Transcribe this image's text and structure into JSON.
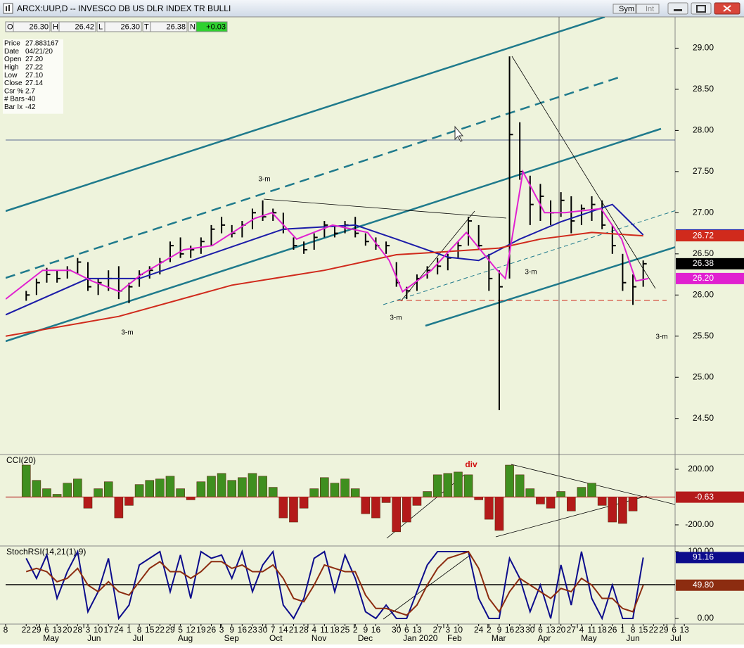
{
  "window": {
    "title": "ARCX:UUP,D -- INVESCO DB US DLR INDEX TR BULLI",
    "buttons": [
      "Sym",
      "Int"
    ]
  },
  "ohlc_strip": [
    [
      "O",
      "26.30"
    ],
    [
      "H",
      "26.42"
    ],
    [
      "L",
      "26.30"
    ],
    [
      "T",
      "26.38"
    ],
    [
      "N",
      "+0.03"
    ]
  ],
  "info_box": [
    [
      "Price",
      "27.883167"
    ],
    [
      "Date",
      "04/21/20"
    ],
    [
      "Open",
      "27.20"
    ],
    [
      "High",
      "27.22"
    ],
    [
      "Low",
      "27.10"
    ],
    [
      "Close",
      "27.14"
    ],
    [
      "Csr %",
      "2.7"
    ],
    [
      "# Bars",
      "-40"
    ],
    [
      "Bar Ix",
      "-42"
    ]
  ],
  "chart_data": [
    {
      "type": "ohlc",
      "xlim": [
        -2,
        63.1
      ],
      "ylim": [
        24.07,
        29.38
      ],
      "yticks": [
        {
          "value": 24.5,
          "label": "24.50"
        },
        {
          "value": 25,
          "label": "25.00"
        },
        {
          "value": 25.5,
          "label": "25.50"
        },
        {
          "value": 26,
          "label": "26.00"
        },
        {
          "value": 26.5,
          "label": "26.50"
        },
        {
          "value": 27,
          "label": "27.00"
        },
        {
          "value": 27.5,
          "label": "27.50"
        },
        {
          "value": 28,
          "label": "28.00"
        },
        {
          "value": 28.5,
          "label": "28.50"
        },
        {
          "value": 29,
          "label": "29.00"
        }
      ],
      "color": "#000000",
      "x": [
        0,
        1,
        2,
        3,
        4,
        5,
        6,
        7,
        8,
        9,
        10,
        11,
        12,
        13,
        14,
        15,
        16,
        17,
        18,
        19,
        20,
        21,
        22,
        23,
        24,
        25,
        26,
        27,
        28,
        29,
        30,
        31,
        32,
        33,
        34,
        35,
        36,
        37,
        38,
        39,
        40,
        41,
        42,
        43,
        44,
        45,
        46,
        47,
        48,
        49,
        50,
        51,
        52,
        53,
        54,
        55,
        56,
        57,
        58,
        59,
        60
      ],
      "high": [
        26.05,
        26.2,
        26.33,
        26.3,
        26.35,
        26.45,
        26.4,
        26.2,
        26.3,
        26.35,
        26.15,
        26.3,
        26.35,
        26.45,
        26.65,
        26.7,
        26.6,
        26.7,
        26.85,
        26.95,
        26.85,
        26.9,
        27.05,
        27.15,
        27.05,
        27.0,
        26.7,
        26.65,
        26.75,
        26.9,
        26.85,
        26.9,
        26.95,
        26.75,
        26.7,
        26.65,
        26.4,
        26.1,
        26.25,
        26.35,
        26.45,
        26.5,
        26.65,
        26.95,
        26.85,
        26.5,
        26.3,
        28.9,
        28.1,
        27.45,
        27.35,
        27.15,
        27.25,
        27.2,
        27.1,
        27.2,
        27.15,
        26.85,
        26.5,
        26.25,
        26.42
      ],
      "low": [
        25.93,
        26.0,
        26.15,
        26.15,
        26.2,
        26.25,
        26.05,
        26.0,
        26.05,
        25.95,
        25.9,
        26.1,
        26.2,
        26.25,
        26.4,
        26.45,
        26.45,
        26.5,
        26.6,
        26.75,
        26.7,
        26.7,
        26.8,
        26.9,
        26.9,
        26.75,
        26.55,
        26.5,
        26.55,
        26.7,
        26.7,
        26.75,
        26.7,
        26.6,
        26.55,
        26.5,
        26.1,
        25.95,
        26.05,
        26.2,
        26.25,
        26.3,
        26.45,
        26.6,
        26.55,
        26.05,
        24.6,
        26.2,
        27.4,
        26.85,
        26.9,
        26.85,
        26.95,
        26.75,
        26.85,
        26.9,
        26.8,
        26.5,
        26.05,
        25.88,
        26.1
      ],
      "close": [
        26.0,
        26.15,
        26.25,
        26.2,
        26.3,
        26.4,
        26.1,
        26.15,
        26.2,
        26.05,
        26.1,
        26.25,
        26.3,
        26.4,
        26.6,
        26.5,
        26.55,
        26.65,
        26.8,
        26.85,
        26.75,
        26.85,
        27.0,
        26.95,
        27.0,
        26.8,
        26.6,
        26.55,
        26.7,
        26.85,
        26.75,
        26.85,
        26.75,
        26.65,
        26.6,
        26.6,
        26.15,
        26.05,
        26.2,
        26.3,
        26.35,
        26.45,
        26.6,
        26.9,
        26.6,
        26.2,
        26.1,
        27.95,
        27.5,
        27.1,
        27.2,
        27.0,
        27.15,
        26.9,
        27.05,
        27.1,
        26.85,
        26.6,
        26.15,
        26.1,
        26.38
      ],
      "overlays": [
        {
          "color": "#1c1ca8",
          "x": [
            -2,
            6,
            11,
            18,
            25,
            32,
            36,
            41,
            44,
            48,
            52,
            57,
            60
          ],
          "values": [
            25.76,
            26.2,
            26.2,
            26.5,
            26.8,
            26.85,
            26.68,
            26.46,
            26.42,
            26.68,
            26.89,
            27.1,
            26.73
          ]
        },
        {
          "color": "#d02a1c",
          "x": [
            -2,
            9,
            20,
            29,
            36,
            40,
            46,
            50,
            55,
            60
          ],
          "values": [
            25.5,
            25.74,
            26.12,
            26.3,
            26.49,
            26.52,
            26.57,
            26.68,
            26.76,
            26.72
          ]
        },
        {
          "color": "#e020d0",
          "x": [
            -2,
            1.6,
            4.3,
            6.4,
            9.1,
            11.2,
            15.3,
            18.1,
            22.2,
            23.9,
            26.3,
            29.8,
            33.2,
            35.3,
            36.6,
            39.4,
            42.8,
            45.6,
            46.6,
            48.3,
            50.4,
            52.4,
            55.9,
            57.9,
            59.3,
            60.5
          ],
          "values": [
            25.95,
            26.3,
            26.3,
            26.17,
            26.04,
            26.25,
            26.55,
            26.6,
            26.93,
            27.0,
            26.68,
            26.85,
            26.76,
            26.42,
            26.04,
            26.3,
            26.76,
            26.33,
            26.2,
            27.5,
            27.0,
            27.0,
            27.05,
            26.68,
            26.17,
            26.2
          ],
          "last_label": "26.20"
        }
      ],
      "annotations": [
        "3-m",
        "3-m",
        "3-m",
        "3-m",
        "3-m"
      ]
    },
    {
      "type": "bar",
      "title": "CCI(20)",
      "xlim": [
        -2,
        63.1
      ],
      "ylim": [
        -347,
        301
      ],
      "yticks": [
        {
          "value": -200,
          "label": "-200.00"
        },
        {
          "value": 200,
          "label": "200.00"
        }
      ],
      "up_color": "#3f8f1f",
      "down_color": "#b41a1a",
      "x": [
        0,
        1,
        2,
        3,
        4,
        5,
        6,
        7,
        8,
        9,
        10,
        11,
        12,
        13,
        14,
        15,
        16,
        17,
        18,
        19,
        20,
        21,
        22,
        23,
        24,
        25,
        26,
        27,
        28,
        29,
        30,
        31,
        32,
        33,
        34,
        35,
        36,
        37,
        38,
        39,
        40,
        41,
        42,
        43,
        44,
        45,
        46,
        47,
        48,
        49,
        50,
        51,
        52,
        53,
        54,
        55,
        56,
        57,
        58,
        59,
        60
      ],
      "values": [
        230,
        120,
        60,
        20,
        100,
        130,
        -80,
        60,
        110,
        -150,
        -60,
        90,
        120,
        130,
        150,
        60,
        -20,
        110,
        150,
        170,
        120,
        140,
        170,
        150,
        70,
        -150,
        -180,
        -80,
        60,
        140,
        100,
        130,
        60,
        -120,
        -150,
        -40,
        -250,
        -180,
        -60,
        40,
        160,
        170,
        180,
        160,
        -20,
        -160,
        -240,
        230,
        160,
        60,
        -50,
        -80,
        40,
        -100,
        70,
        100,
        -60,
        -180,
        -190,
        -100,
        -0.63
      ],
      "annotations": [
        "div"
      ]
    },
    {
      "type": "line",
      "title": "StochRSI(14,21(1),9)",
      "xlim": [
        -2,
        63.1
      ],
      "ylim": [
        -8.4,
        107.4
      ],
      "yticks": [
        {
          "value": 0,
          "label": "0.00"
        },
        {
          "value": 100,
          "label": "100.00"
        }
      ],
      "x": [
        0,
        1,
        2,
        3,
        4,
        5,
        6,
        7,
        8,
        9,
        10,
        11,
        12,
        13,
        14,
        15,
        16,
        17,
        18,
        19,
        20,
        21,
        22,
        23,
        24,
        25,
        26,
        27,
        28,
        29,
        30,
        31,
        32,
        33,
        34,
        35,
        36,
        37,
        38,
        39,
        40,
        41,
        42,
        43,
        44,
        45,
        46,
        47,
        48,
        49,
        50,
        51,
        52,
        53,
        54,
        55,
        56,
        57,
        58,
        59,
        60
      ],
      "series": [
        {
          "color": "#0c0c8c",
          "values": [
            90,
            60,
            95,
            30,
            70,
            100,
            10,
            40,
            90,
            0,
            20,
            80,
            90,
            100,
            40,
            95,
            30,
            100,
            90,
            95,
            60,
            100,
            40,
            80,
            100,
            20,
            0,
            30,
            90,
            100,
            40,
            95,
            60,
            10,
            0,
            20,
            0,
            0,
            40,
            80,
            100,
            100,
            100,
            100,
            30,
            0,
            0,
            90,
            60,
            10,
            50,
            0,
            80,
            20,
            100,
            30,
            0,
            50,
            0,
            0,
            91.16
          ]
        },
        {
          "color": "#8c2c10",
          "values": [
            70,
            75,
            70,
            55,
            60,
            75,
            50,
            40,
            55,
            40,
            35,
            55,
            75,
            85,
            70,
            70,
            60,
            70,
            85,
            85,
            75,
            80,
            70,
            70,
            80,
            60,
            30,
            25,
            50,
            80,
            75,
            70,
            70,
            35,
            15,
            15,
            10,
            5,
            20,
            50,
            75,
            90,
            95,
            100,
            75,
            30,
            10,
            40,
            60,
            50,
            40,
            30,
            45,
            40,
            60,
            50,
            30,
            30,
            15,
            10,
            49.8
          ],
          "last_label": "49.80"
        }
      ],
      "xticks": [
        {
          "value": -2,
          "label": "8"
        },
        {
          "value": 0,
          "label": "22"
        },
        {
          "value": 1,
          "label": "29"
        },
        {
          "value": 2,
          "label": "6"
        },
        {
          "value": 3,
          "label": "13"
        },
        {
          "value": 4,
          "label": "20"
        },
        {
          "value": 5,
          "label": "28"
        },
        {
          "value": 6,
          "label": "3"
        },
        {
          "value": 7,
          "label": "10"
        },
        {
          "value": 8,
          "label": "17"
        },
        {
          "value": 9,
          "label": "24"
        },
        {
          "value": 10,
          "label": "1"
        },
        {
          "value": 11,
          "label": "8"
        },
        {
          "value": 12,
          "label": "15"
        },
        {
          "value": 13,
          "label": "22"
        },
        {
          "value": 14,
          "label": "29"
        },
        {
          "value": 15,
          "label": "5"
        },
        {
          "value": 16,
          "label": "12"
        },
        {
          "value": 17,
          "label": "19"
        },
        {
          "value": 18,
          "label": "26"
        },
        {
          "value": 19,
          "label": "3"
        },
        {
          "value": 20,
          "label": "9"
        },
        {
          "value": 21,
          "label": "16"
        },
        {
          "value": 22,
          "label": "23"
        },
        {
          "value": 23,
          "label": "30"
        },
        {
          "value": 24,
          "label": "7"
        },
        {
          "value": 25,
          "label": "14"
        },
        {
          "value": 26,
          "label": "21"
        },
        {
          "value": 27,
          "label": "28"
        },
        {
          "value": 28,
          "label": "4"
        },
        {
          "value": 29,
          "label": "11"
        },
        {
          "value": 30,
          "label": "18"
        },
        {
          "value": 31,
          "label": "25"
        },
        {
          "value": 32,
          "label": "2"
        },
        {
          "value": 33,
          "label": "9"
        },
        {
          "value": 34,
          "label": "16"
        },
        {
          "value": 36,
          "label": "30"
        },
        {
          "value": 37,
          "label": "6"
        },
        {
          "value": 38,
          "label": "13"
        },
        {
          "value": 40,
          "label": "27"
        },
        {
          "value": 41,
          "label": "3"
        },
        {
          "value": 42,
          "label": "10"
        },
        {
          "value": 44,
          "label": "24"
        },
        {
          "value": 45,
          "label": "2"
        },
        {
          "value": 46,
          "label": "9"
        },
        {
          "value": 47,
          "label": "16"
        },
        {
          "value": 48,
          "label": "23"
        },
        {
          "value": 49,
          "label": "30"
        },
        {
          "value": 50,
          "label": "6"
        },
        {
          "value": 51,
          "label": "13"
        },
        {
          "value": 52,
          "label": "20"
        },
        {
          "value": 53,
          "label": "27"
        },
        {
          "value": 54,
          "label": "4"
        },
        {
          "value": 55,
          "label": "11"
        },
        {
          "value": 56,
          "label": "18"
        },
        {
          "value": 57,
          "label": "26"
        },
        {
          "value": 58,
          "label": "1"
        },
        {
          "value": 59,
          "label": "8"
        },
        {
          "value": 60,
          "label": "15"
        },
        {
          "value": 61,
          "label": "22"
        },
        {
          "value": 62,
          "label": "29"
        },
        {
          "value": 63,
          "label": "6"
        },
        {
          "value": 64,
          "label": "13"
        }
      ],
      "month_labels": [
        {
          "value": 1.3,
          "label": "May"
        },
        {
          "value": 5.6,
          "label": "Jun"
        },
        {
          "value": 10,
          "label": "Jul"
        },
        {
          "value": 14.4,
          "label": "Aug"
        },
        {
          "value": 18.9,
          "label": "Sep"
        },
        {
          "value": 23.3,
          "label": "Oct"
        },
        {
          "value": 27.4,
          "label": "Nov"
        },
        {
          "value": 31.9,
          "label": "Dec"
        },
        {
          "value": 36.3,
          "label": "Jan 2020"
        },
        {
          "value": 40.6,
          "label": "Feb"
        },
        {
          "value": 44.9,
          "label": "Mar"
        },
        {
          "value": 49.4,
          "label": "Apr"
        },
        {
          "value": 53.6,
          "label": "May"
        },
        {
          "value": 58,
          "label": "Jun"
        },
        {
          "value": 62.3,
          "label": "Jul"
        }
      ]
    }
  ]
}
